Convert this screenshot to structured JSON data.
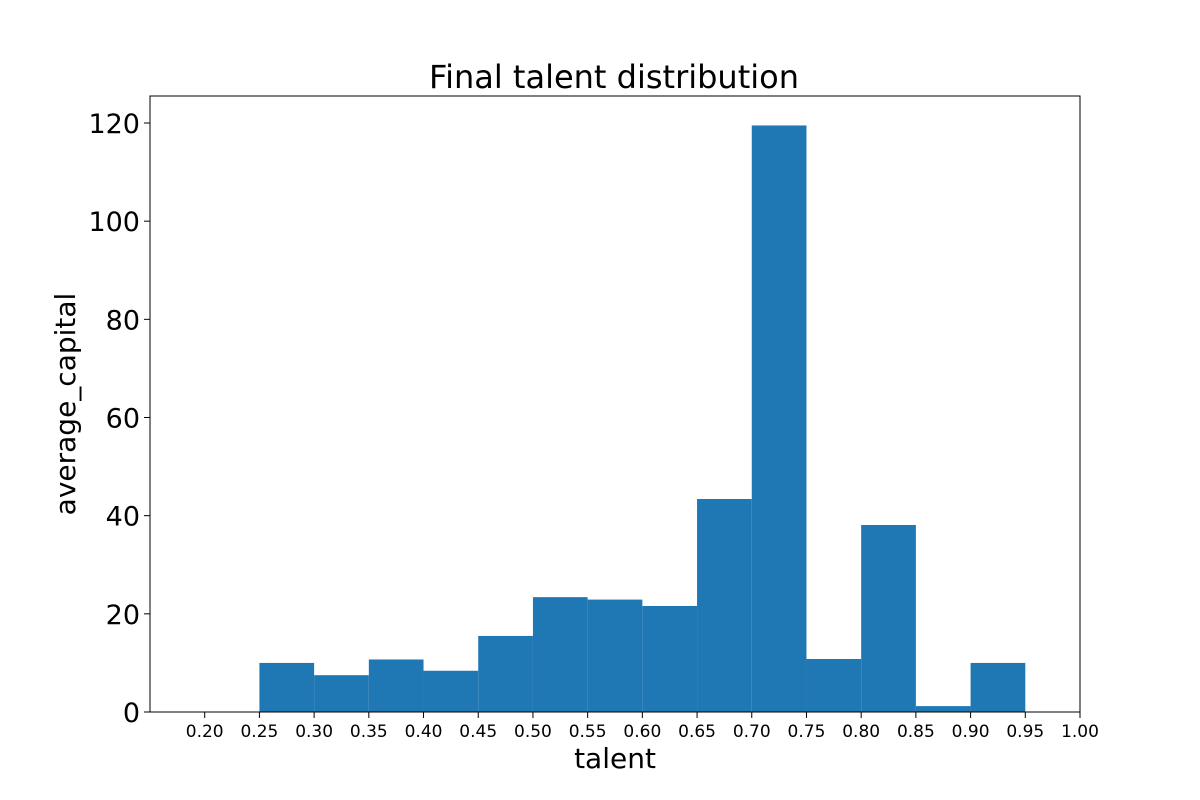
{
  "chart_data": {
    "type": "bar",
    "title": "Final talent distribution",
    "xlabel": "talent",
    "ylabel": "average_capital",
    "bins": [
      {
        "x0": 0.2,
        "x1": 0.25,
        "value": 0
      },
      {
        "x0": 0.25,
        "x1": 0.3,
        "value": 10
      },
      {
        "x0": 0.3,
        "x1": 0.35,
        "value": 7.5
      },
      {
        "x0": 0.35,
        "x1": 0.4,
        "value": 10.7
      },
      {
        "x0": 0.4,
        "x1": 0.45,
        "value": 8.4
      },
      {
        "x0": 0.45,
        "x1": 0.5,
        "value": 15.5
      },
      {
        "x0": 0.5,
        "x1": 0.55,
        "value": 23.4
      },
      {
        "x0": 0.55,
        "x1": 0.6,
        "value": 22.9
      },
      {
        "x0": 0.6,
        "x1": 0.65,
        "value": 21.6
      },
      {
        "x0": 0.65,
        "x1": 0.7,
        "value": 43.4
      },
      {
        "x0": 0.7,
        "x1": 0.75,
        "value": 119.5
      },
      {
        "x0": 0.75,
        "x1": 0.8,
        "value": 10.8
      },
      {
        "x0": 0.8,
        "x1": 0.85,
        "value": 38.1
      },
      {
        "x0": 0.85,
        "x1": 0.9,
        "value": 1.2
      },
      {
        "x0": 0.9,
        "x1": 0.95,
        "value": 10
      }
    ],
    "xlim": [
      0.15,
      1.0
    ],
    "ylim": [
      0,
      125.5
    ],
    "xticks": [
      "0.20",
      "0.25",
      "0.30",
      "0.35",
      "0.40",
      "0.45",
      "0.50",
      "0.55",
      "0.60",
      "0.65",
      "0.70",
      "0.75",
      "0.80",
      "0.85",
      "0.90",
      "0.95",
      "1.00"
    ],
    "yticks": [
      "0",
      "20",
      "40",
      "60",
      "80",
      "100",
      "120"
    ],
    "bar_color": "#1f77b4",
    "grid": false,
    "legend": "none"
  }
}
